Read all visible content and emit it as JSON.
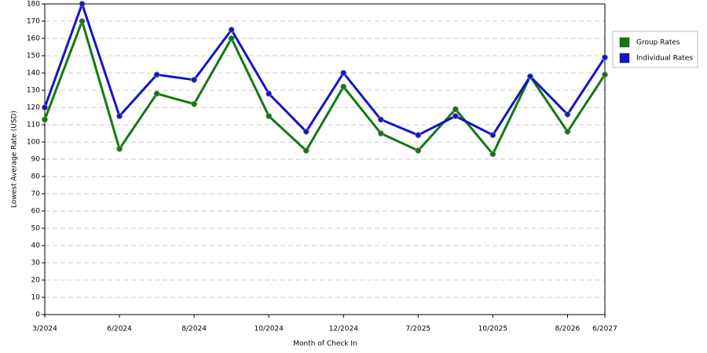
{
  "chart_data": {
    "type": "line",
    "x_label": "Month of Check In",
    "y_label": "Lowest Average Rate (USD)",
    "categories": [
      "3/2024",
      null,
      "6/2024",
      null,
      "8/2024",
      null,
      "10/2024",
      null,
      "12/2024",
      null,
      "7/2025",
      null,
      "10/2025",
      null,
      "8/2026",
      "6/2027"
    ],
    "series": [
      {
        "name": "Group Rates",
        "color": "#127812",
        "values": [
          113,
          170,
          96,
          128,
          122,
          160,
          115,
          95,
          132,
          105,
          95,
          119,
          93,
          138,
          106,
          139
        ]
      },
      {
        "name": "Individual Rates",
        "color": "#1414c8",
        "values": [
          120,
          180,
          115,
          139,
          136,
          165,
          128,
          106,
          140,
          113,
          104,
          115,
          104,
          138,
          116,
          149
        ]
      }
    ],
    "ylim": [
      0,
      180
    ],
    "yticks": [
      0,
      10,
      20,
      30,
      40,
      50,
      60,
      70,
      80,
      90,
      100,
      110,
      120,
      130,
      140,
      150,
      160,
      170,
      180
    ],
    "grid": true,
    "legend": "right"
  }
}
